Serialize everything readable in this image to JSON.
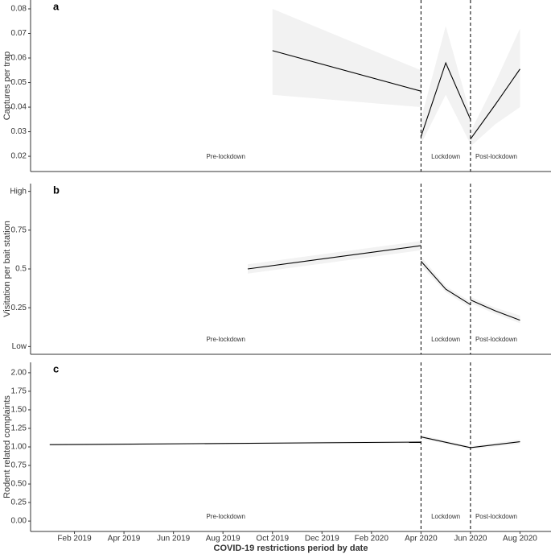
{
  "chart_data": [
    {
      "type": "line",
      "title": "a",
      "y_label": "Captures per trap",
      "ylim": [
        0.0138,
        0.0836
      ],
      "yticks": [
        0.02,
        0.03,
        0.04,
        0.05,
        0.06,
        0.07,
        0.08
      ],
      "color": "#000000",
      "band_color": "#f2f2f2",
      "lines": [
        {
          "x": [
            "2019-10",
            "2020-04"
          ],
          "values": [
            0.063,
            0.0465
          ],
          "ci_lower": [
            0.045,
            0.04
          ],
          "ci_upper": [
            0.08,
            0.055
          ]
        },
        {
          "x": [
            "2020-04",
            "2020-05",
            "2020-06"
          ],
          "values": [
            0.028,
            0.058,
            0.035
          ],
          "ci_lower": [
            0.025,
            0.045,
            0.025
          ],
          "ci_upper": [
            0.035,
            0.073,
            0.037
          ]
        },
        {
          "x": [
            "2020-06",
            "2020-07",
            "2020-08"
          ],
          "values": [
            0.027,
            0.041,
            0.0555
          ],
          "ci_lower": [
            0.024,
            0.033,
            0.04
          ],
          "ci_upper": [
            0.03,
            0.05,
            0.072
          ]
        }
      ],
      "vlines": [
        "2020-04",
        "2020-06"
      ],
      "annotations": [
        "Pre-lockdown",
        "Lockdown",
        "Post-lockdown"
      ]
    },
    {
      "type": "line",
      "title": "b",
      "y_label": "Visitation per bait station",
      "ylim": [
        -0.05,
        1.05
      ],
      "yticks": [
        {
          "value": 0,
          "label": "Low"
        },
        0.25,
        0.5,
        0.75,
        {
          "value": 1,
          "label": "High"
        }
      ],
      "color": "#000000",
      "band_color": "#f2f2f2",
      "lines": [
        {
          "x": [
            "2019-09",
            "2020-04"
          ],
          "values": [
            0.5,
            0.65
          ],
          "ci_lower": [
            0.47,
            0.62
          ],
          "ci_upper": [
            0.53,
            0.68
          ]
        },
        {
          "x": [
            "2020-04",
            "2020-05",
            "2020-06"
          ],
          "values": [
            0.55,
            0.37,
            0.27
          ],
          "ci_lower": [
            0.52,
            0.35,
            0.25
          ],
          "ci_upper": [
            0.58,
            0.39,
            0.29
          ]
        },
        {
          "x": [
            "2020-06",
            "2020-07",
            "2020-08"
          ],
          "values": [
            0.3,
            0.23,
            0.17
          ],
          "ci_lower": [
            0.28,
            0.21,
            0.15
          ],
          "ci_upper": [
            0.32,
            0.25,
            0.2
          ]
        }
      ],
      "vlines": [
        "2020-04",
        "2020-06"
      ],
      "annotations": [
        "Pre-lockdown",
        "Lockdown",
        "Post-lockdown"
      ]
    },
    {
      "type": "line",
      "title": "c",
      "y_label": "Rodent related complaints",
      "ylim": [
        -0.14,
        2.14
      ],
      "yticks": [
        {
          "value": 0,
          "label": "0.00"
        },
        0.25,
        {
          "value": 0.5,
          "label": "0.50"
        },
        0.75,
        {
          "value": 1,
          "label": "1.00"
        },
        1.25,
        {
          "value": 1.5,
          "label": "1.50"
        },
        1.75,
        {
          "value": 2,
          "label": "2.00"
        }
      ],
      "color": "#000000",
      "band_color": "#f2f2f2",
      "lines": [
        {
          "x": [
            "2019-01",
            "2020-04"
          ],
          "values": [
            1.03,
            1.065
          ],
          "ci_lower": [
            1.02,
            1.05
          ],
          "ci_upper": [
            1.04,
            1.08
          ]
        },
        {
          "x": [
            "2020-04",
            "2020-06"
          ],
          "values": [
            1.135,
            0.99
          ],
          "ci_lower": [
            1.11,
            0.97
          ],
          "ci_upper": [
            1.16,
            1.01
          ]
        },
        {
          "x": [
            "2020-06",
            "2020-08"
          ],
          "values": [
            0.99,
            1.07
          ],
          "ci_lower": [
            0.97,
            1.04
          ],
          "ci_upper": [
            1.01,
            1.1
          ]
        }
      ],
      "vlines": [
        "2020-04",
        "2020-06"
      ],
      "annotations": [
        "Pre-lockdown",
        "Lockdown",
        "Post-lockdown"
      ],
      "xlim": [
        "2018-12",
        "2020-10"
      ],
      "xticks": [
        {
          "value": "2019-02",
          "label": "Feb 2019"
        },
        {
          "value": "2019-04",
          "label": "Apr 2019"
        },
        {
          "value": "2019-06",
          "label": "Jun 2019"
        },
        {
          "value": "2019-08",
          "label": "Aug 2019"
        },
        {
          "value": "2019-10",
          "label": "Oct 2019"
        },
        {
          "value": "2019-12",
          "label": "Dec 2019"
        },
        {
          "value": "2020-02",
          "label": "Feb 2020"
        },
        {
          "value": "2020-04",
          "label": "Apr 2020"
        },
        {
          "value": "2020-06",
          "label": "Jun 2020"
        },
        {
          "value": "2020-08",
          "label": "Aug 2020"
        }
      ],
      "x_label": "COVID-19 restrictions period by date"
    }
  ]
}
